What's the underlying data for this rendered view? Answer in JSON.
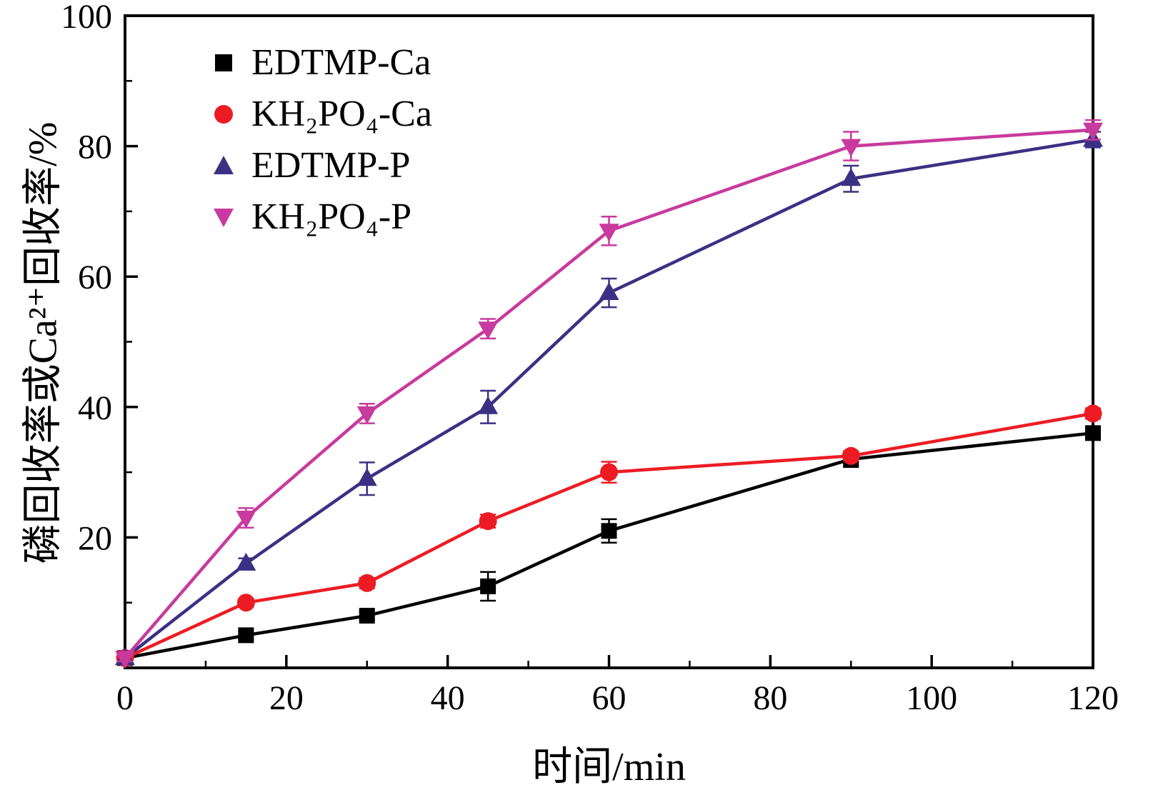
{
  "figure": {
    "background": "#ffffff",
    "axis_color": "#000000"
  },
  "chart_data": {
    "type": "line",
    "title": "",
    "xlabel": "时间/min",
    "ylabel": "磷回收率或Ca²⁺回收率/%",
    "xlim": [
      0,
      120
    ],
    "ylim": [
      0,
      100
    ],
    "x_ticks": [
      0,
      20,
      40,
      60,
      80,
      100,
      120
    ],
    "y_ticks": [
      0,
      20,
      40,
      60,
      80,
      100
    ],
    "x_minor_step": 10,
    "y_minor_step": 10,
    "grid": false,
    "legend_position": "top-left-inside",
    "error_bars": true,
    "x": [
      0,
      15,
      30,
      45,
      60,
      90,
      120
    ],
    "series": [
      {
        "name": "EDTMP-Ca",
        "color": "#000000",
        "marker": "square",
        "values": [
          1.5,
          5,
          8,
          12.5,
          21,
          32,
          36
        ],
        "errors": [
          0.5,
          0.6,
          0.6,
          2.2,
          1.8,
          1.2,
          0.8
        ]
      },
      {
        "name": "KH₂PO₄-Ca",
        "color": "#ed1c24",
        "marker": "circle",
        "values": [
          1.5,
          10,
          13,
          22.5,
          30,
          32.5,
          39
        ],
        "errors": [
          0.5,
          0.6,
          0.8,
          1.0,
          1.6,
          0.7,
          0.8
        ]
      },
      {
        "name": "EDTMP-P",
        "color": "#3a3184",
        "marker": "triangle-up",
        "values": [
          1.5,
          16,
          29,
          40,
          57.5,
          75,
          81
        ],
        "errors": [
          0.5,
          0.8,
          2.5,
          2.5,
          2.2,
          2.0,
          1.2
        ]
      },
      {
        "name": "KH₂PO₄-P",
        "color": "#c83a9d",
        "marker": "triangle-down",
        "values": [
          1.5,
          23,
          39,
          52,
          67,
          80,
          82.5
        ],
        "errors": [
          0.5,
          1.5,
          1.5,
          1.5,
          2.2,
          2.2,
          1.5
        ]
      }
    ]
  }
}
